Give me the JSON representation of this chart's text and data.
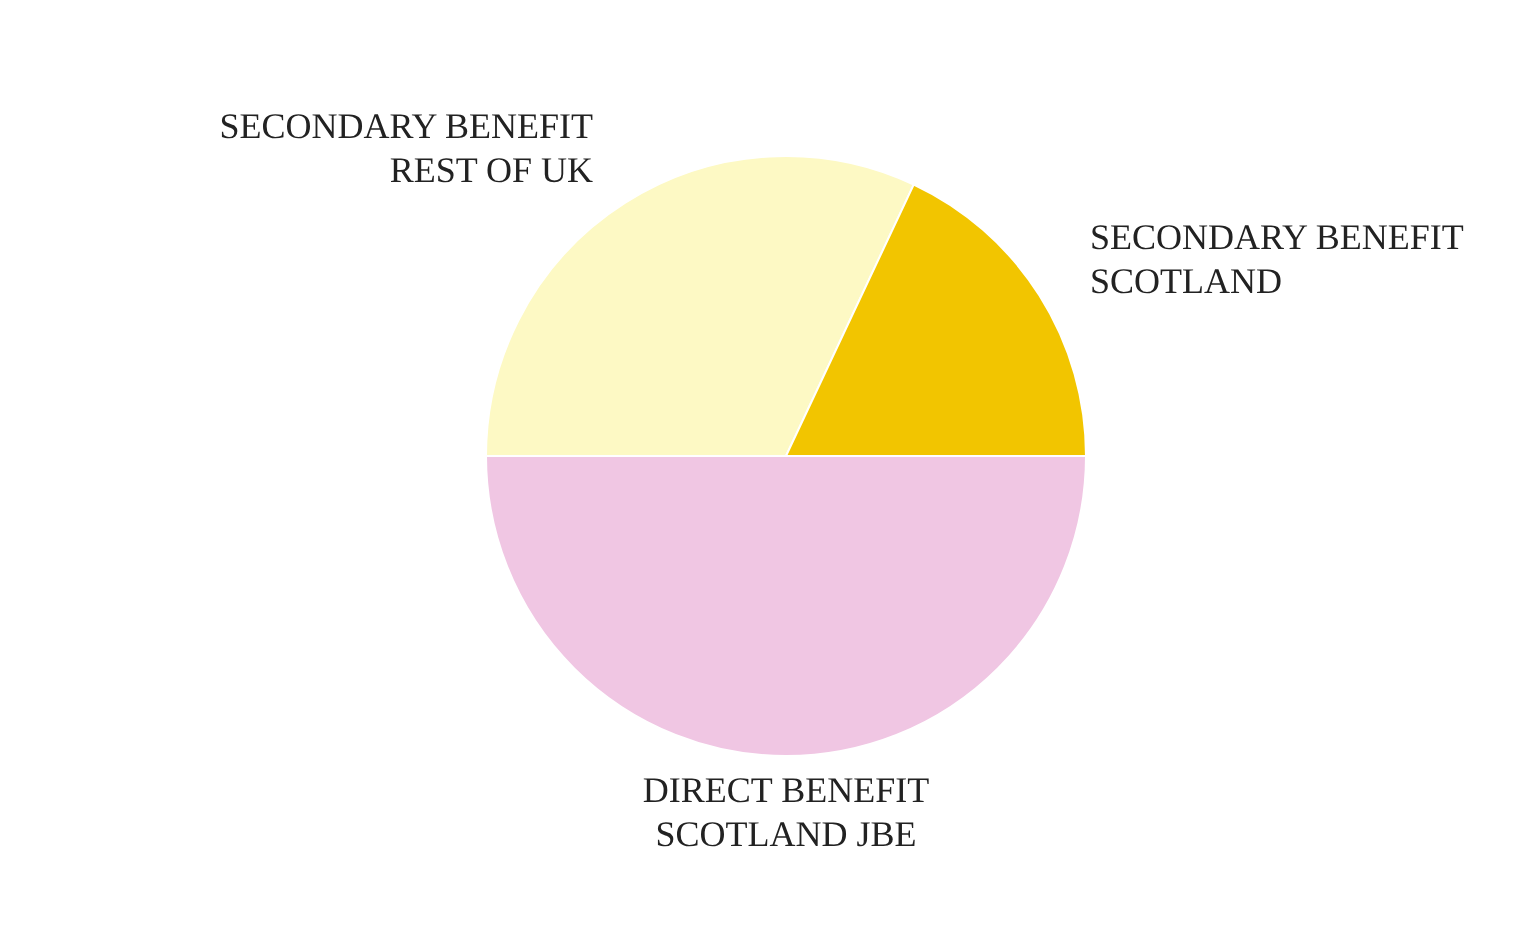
{
  "chart_data": {
    "type": "pie",
    "categories": [
      "SECONDARY BENEFIT\nREST OF UK",
      "SECONDARY BENEFIT\nSCOTLAND",
      "DIRECT BENEFIT\nSCOTLAND JBE"
    ],
    "values": [
      32,
      18,
      50
    ],
    "colors": [
      "#fdf9c4",
      "#f2c500",
      "#f0c6e3"
    ],
    "legend": false
  }
}
